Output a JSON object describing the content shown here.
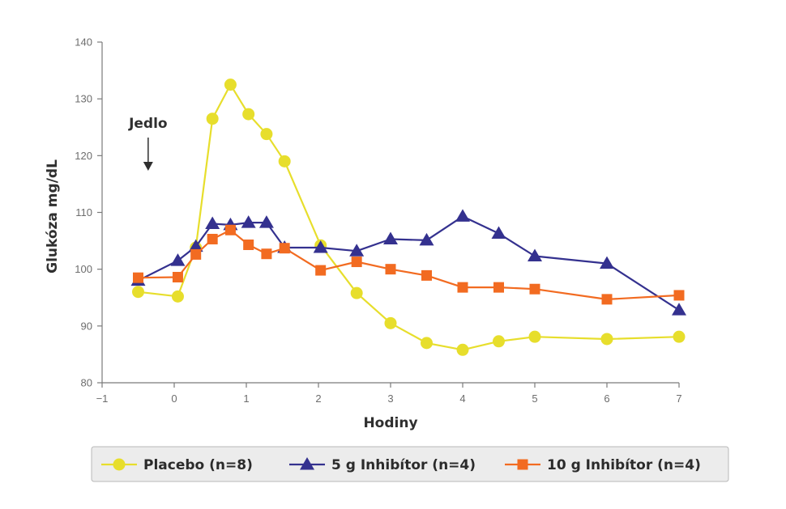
{
  "chart_data": {
    "type": "line",
    "xlabel": "Hodiny",
    "ylabel": "Glukóza  mg/dL",
    "xlim": [
      -1,
      7
    ],
    "ylim": [
      80,
      140
    ],
    "xticks": [
      -1,
      0,
      1,
      2,
      3,
      4,
      5,
      6,
      7
    ],
    "xtick_labels": [
      "−1",
      "0",
      "1",
      "2",
      "3",
      "4",
      "5",
      "6",
      "7"
    ],
    "yticks": [
      80,
      90,
      100,
      110,
      120,
      130,
      140
    ],
    "ytick_labels": [
      "80",
      "90",
      "100",
      "110",
      "120",
      "130",
      "140"
    ],
    "grid": false,
    "legend_position": "bottom",
    "annotation": {
      "text": "Jedlo",
      "x": -0.35,
      "arrow": "down"
    },
    "series": [
      {
        "name": "Placebo (n=8)",
        "marker": "circle",
        "color": "#e7de2c",
        "x": [
          -0.5,
          0.05,
          0.3,
          0.53,
          0.78,
          1.03,
          1.28,
          1.53,
          2.03,
          2.53,
          3.0,
          3.5,
          4.0,
          4.5,
          5.0,
          6.0,
          7.0
        ],
        "y": [
          96.0,
          95.2,
          103.8,
          126.5,
          132.5,
          127.3,
          123.8,
          119.0,
          104.2,
          95.8,
          90.5,
          87.0,
          85.8,
          87.3,
          88.1,
          87.7,
          88.1
        ]
      },
      {
        "name": "5 g  Inhibítor (n=4)",
        "marker": "triangle",
        "color": "#34318f",
        "x": [
          -0.5,
          0.05,
          0.3,
          0.53,
          0.78,
          1.03,
          1.28,
          1.53,
          2.03,
          2.53,
          3.0,
          3.5,
          4.0,
          4.5,
          5.0,
          6.0,
          7.0
        ],
        "y": [
          98.0,
          101.5,
          104.0,
          108.0,
          107.8,
          108.2,
          108.2,
          103.8,
          103.8,
          103.2,
          105.3,
          105.1,
          109.3,
          106.3,
          102.3,
          101.0,
          92.8
        ]
      },
      {
        "name": "10 g  Inhibítor (n=4)",
        "marker": "square",
        "color": "#f26b21",
        "x": [
          -0.5,
          0.05,
          0.3,
          0.53,
          0.78,
          1.03,
          1.28,
          1.53,
          2.03,
          2.53,
          3.0,
          3.5,
          4.0,
          4.5,
          5.0,
          6.0,
          7.0
        ],
        "y": [
          98.5,
          98.6,
          102.6,
          105.3,
          106.9,
          104.3,
          102.7,
          103.7,
          99.8,
          101.3,
          100.0,
          98.9,
          96.8,
          96.8,
          96.5,
          94.7,
          95.4
        ]
      }
    ]
  }
}
